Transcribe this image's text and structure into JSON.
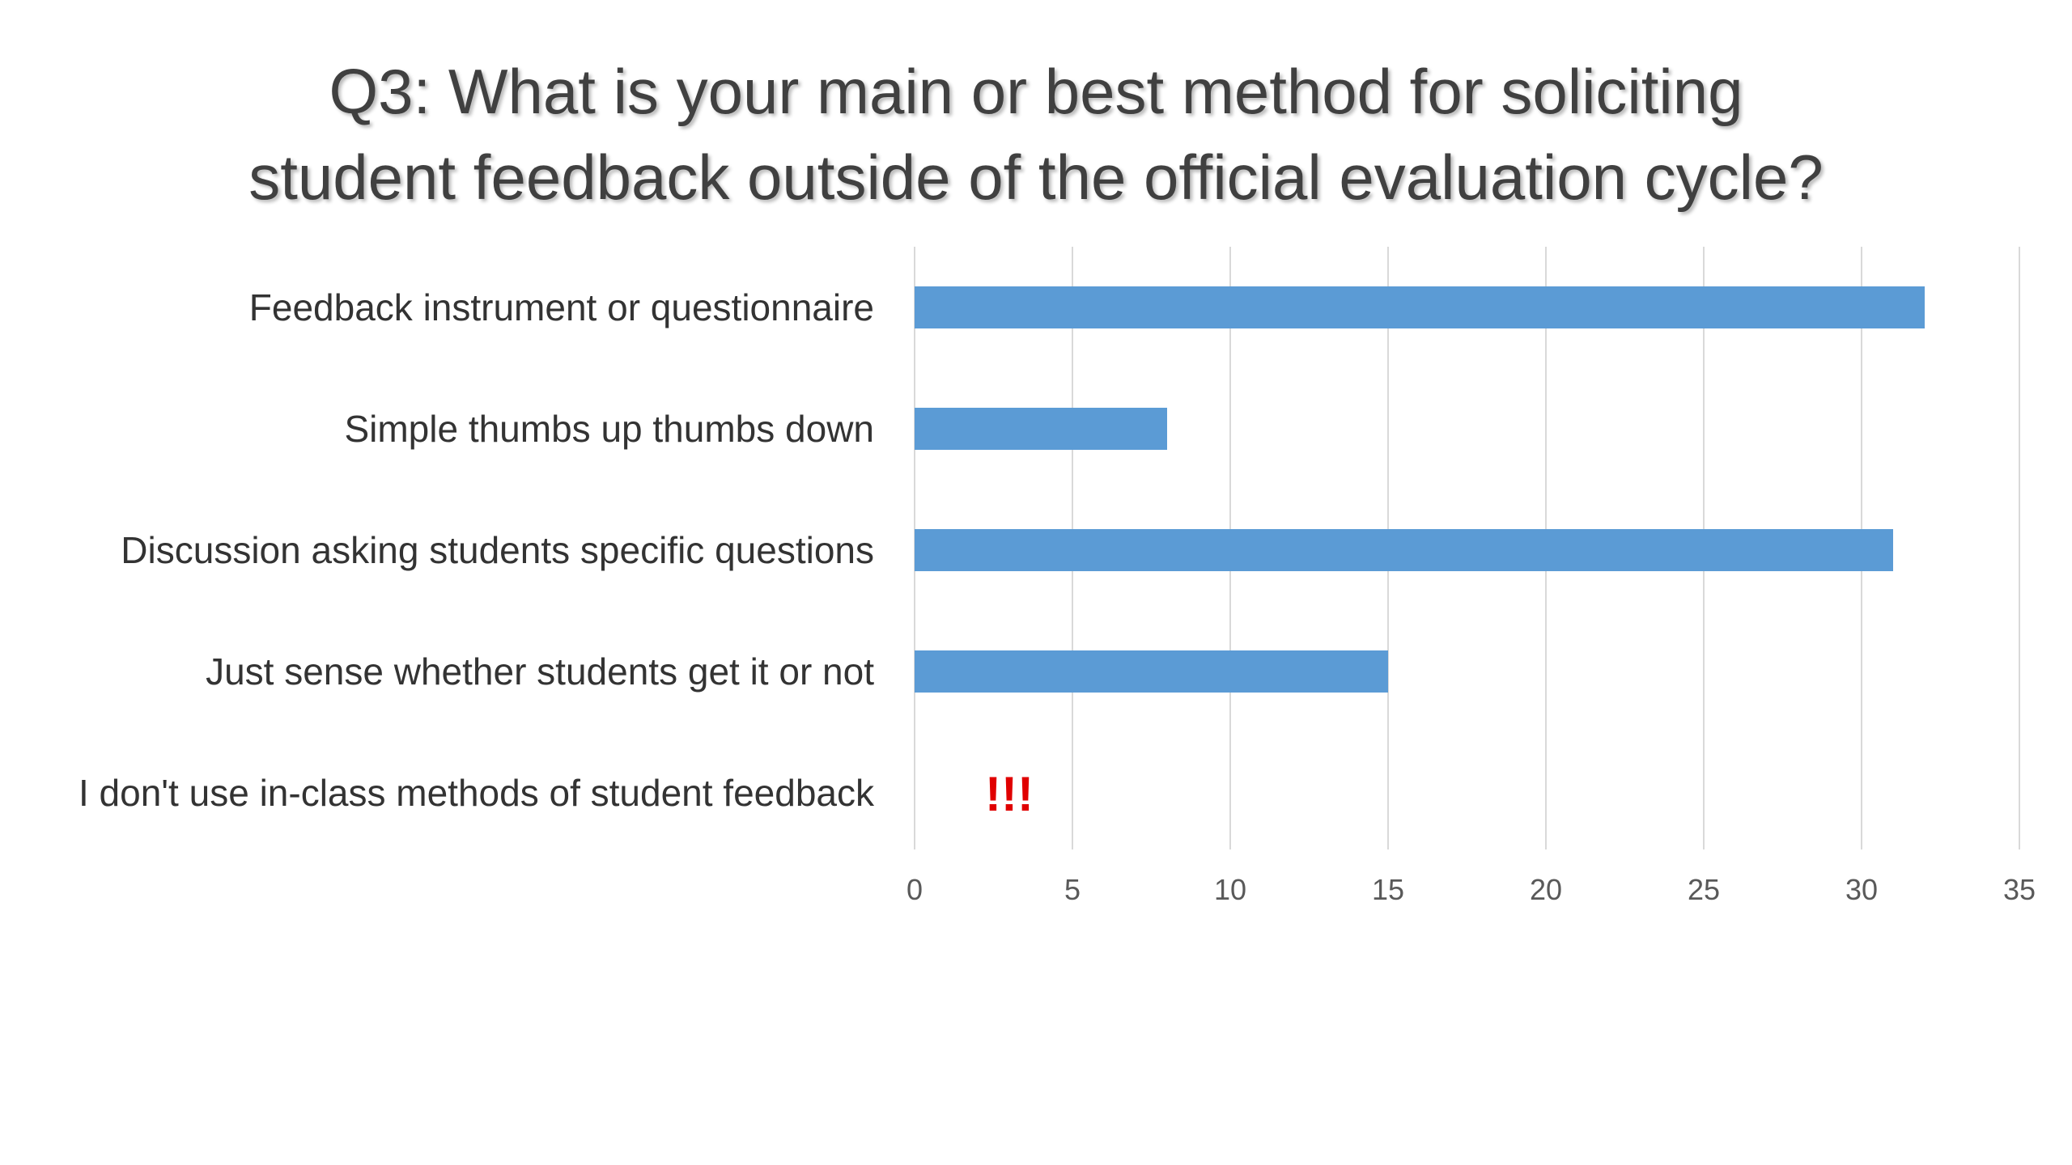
{
  "chart_data": {
    "type": "bar",
    "orientation": "horizontal",
    "title_lines": [
      "Q3: What is your main or best method for soliciting",
      "student feedback outside of the official evaluation cycle?"
    ],
    "categories": [
      "Feedback instrument or questionnaire",
      "Simple thumbs up thumbs down",
      "Discussion asking students specific questions",
      "Just sense whether students get it or not",
      "I don't use in-class methods of student feedback"
    ],
    "values": [
      32,
      8,
      31,
      15,
      0
    ],
    "xlim": [
      0,
      35
    ],
    "xticks": [
      0,
      5,
      10,
      15,
      20,
      25,
      30,
      35
    ],
    "xtick_labels": [
      "0",
      "5",
      "10",
      "15",
      "20",
      "25",
      "30",
      "35"
    ],
    "grid": "vertical",
    "legend": "none",
    "annotation": {
      "text": "!!!",
      "category_index": 4,
      "x_value": 3,
      "color": "#e00000"
    },
    "bar_color": "#5b9bd5",
    "grid_color": "#d9d9d9"
  }
}
